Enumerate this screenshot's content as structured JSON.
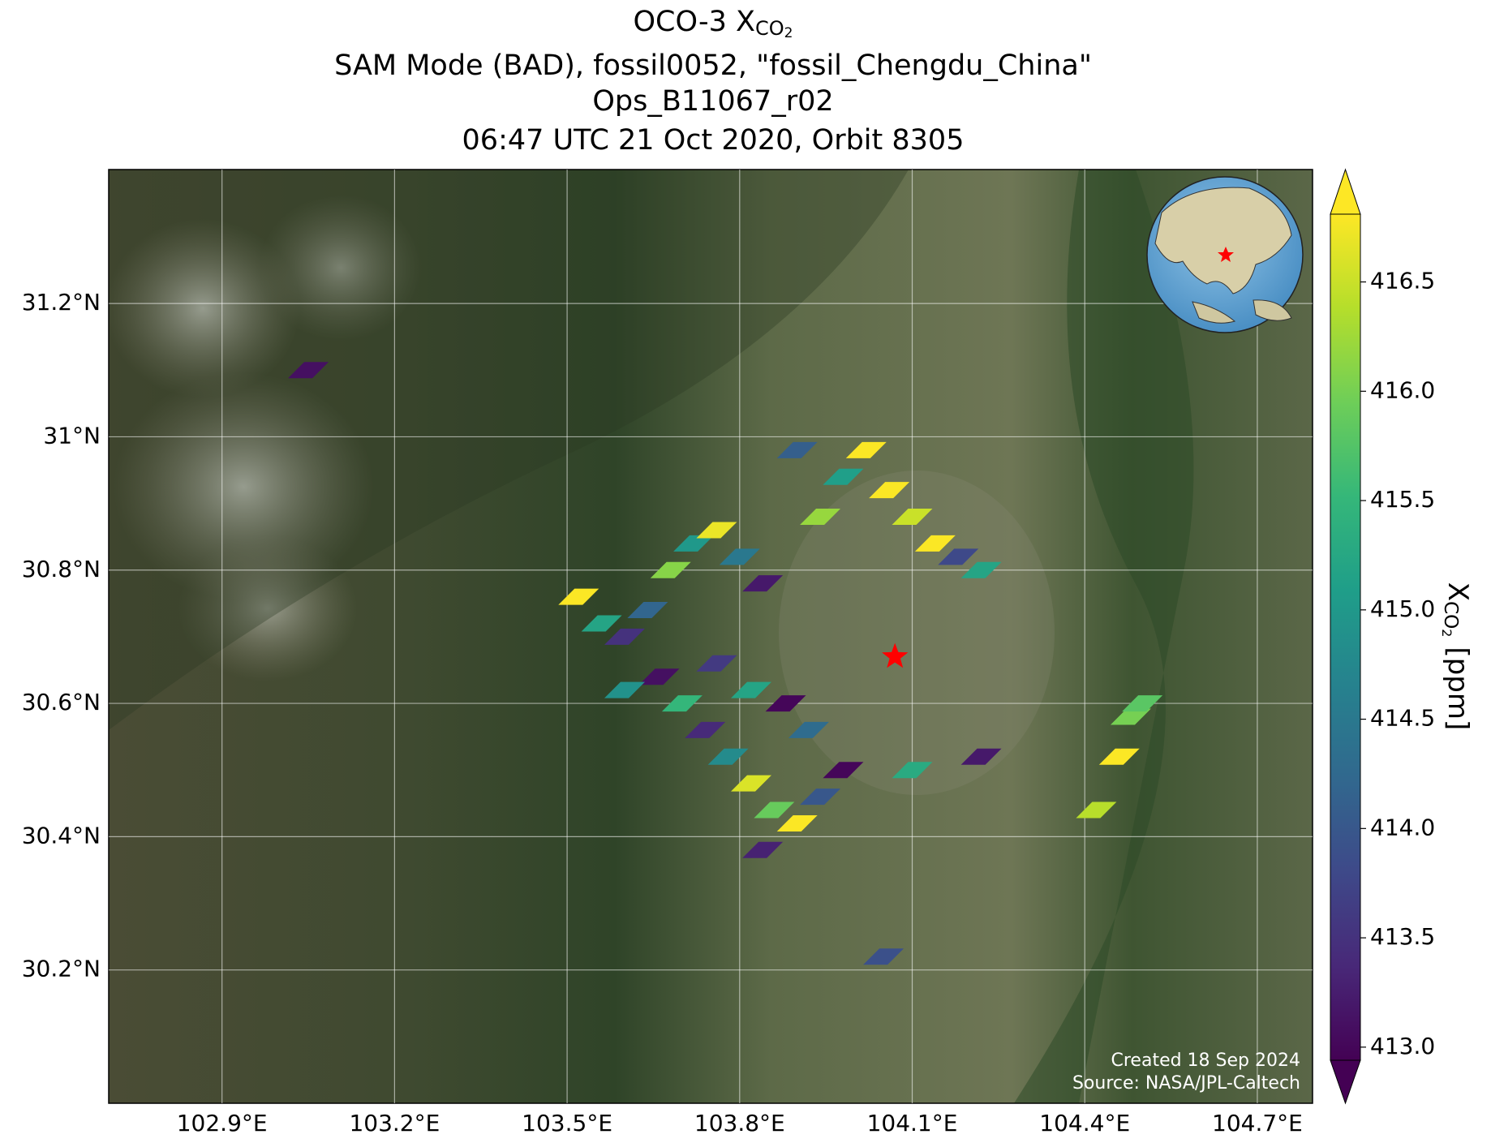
{
  "map": {
    "type": "map",
    "title": {
      "line1_main": "OCO-3 X",
      "line1_sub": "CO",
      "line1_subsub": "2",
      "line2": "SAM Mode (BAD), fossil0052, \"fossil_Chengdu_China\"",
      "line3": "Ops_B11067_r02",
      "line4": "06:47 UTC 21 Oct 2020, Orbit 8305"
    },
    "xlim": [
      102.703,
      104.796
    ],
    "ylim": [
      30.0,
      31.401
    ],
    "xticks": [
      {
        "value": 102.9,
        "label": "102.9°E"
      },
      {
        "value": 103.2,
        "label": "103.2°E"
      },
      {
        "value": 103.5,
        "label": "103.5°E"
      },
      {
        "value": 103.8,
        "label": "103.8°E"
      },
      {
        "value": 104.1,
        "label": "104.1°E"
      },
      {
        "value": 104.4,
        "label": "104.4°E"
      },
      {
        "value": 104.7,
        "label": "104.7°E"
      }
    ],
    "yticks": [
      {
        "value": 30.2,
        "label": "30.2°N"
      },
      {
        "value": 30.4,
        "label": "30.4°N"
      },
      {
        "value": 30.6,
        "label": "30.6°N"
      },
      {
        "value": 30.8,
        "label": "30.8°N"
      },
      {
        "value": 31,
        "label": "31°N"
      },
      {
        "value": 31.2,
        "label": "31.2°N"
      }
    ],
    "grid": true,
    "target": {
      "lon": 104.07,
      "lat": 30.67,
      "color": "#ff0000"
    },
    "soundings": {
      "lon": [
        103.52,
        103.56,
        103.6,
        103.64,
        103.68,
        103.72,
        103.76,
        103.8,
        103.84,
        103.66,
        103.7,
        103.74,
        103.78,
        103.82,
        103.86,
        103.9,
        103.94,
        103.98,
        103.84,
        103.76,
        103.82,
        103.88,
        103.92,
        103.6,
        103.94,
        103.98,
        104.02,
        104.06,
        104.1,
        104.14,
        104.18,
        104.22,
        103.9,
        104.42,
        104.46,
        104.48,
        104.5,
        104.1,
        104.22,
        103.05,
        104.05
      ],
      "lat": [
        30.76,
        30.72,
        30.7,
        30.74,
        30.8,
        30.84,
        30.86,
        30.82,
        30.78,
        30.64,
        30.6,
        30.56,
        30.52,
        30.48,
        30.44,
        30.42,
        30.46,
        30.5,
        30.38,
        30.66,
        30.62,
        30.6,
        30.56,
        30.62,
        30.88,
        30.94,
        30.98,
        30.92,
        30.88,
        30.84,
        30.82,
        30.8,
        30.98,
        30.44,
        30.52,
        30.58,
        30.6,
        30.5,
        30.52,
        31.1,
        30.22
      ],
      "values": [
        416.8,
        415.2,
        413.5,
        414.2,
        416.1,
        415.0,
        416.7,
        414.5,
        413.2,
        413.1,
        415.5,
        413.4,
        414.8,
        416.6,
        415.9,
        416.8,
        414.0,
        413.0,
        413.3,
        413.6,
        415.2,
        413.0,
        414.3,
        414.9,
        416.2,
        415.1,
        416.8,
        416.8,
        416.5,
        416.8,
        413.8,
        415.2,
        414.1,
        416.4,
        416.8,
        416.0,
        415.8,
        415.3,
        413.2,
        413.1,
        413.9
      ]
    },
    "colorbar": {
      "colormap": "viridis",
      "clim": [
        412.94,
        416.81
      ],
      "ticks": [
        {
          "value": 413,
          "label": "413.0"
        },
        {
          "value": 413.5,
          "label": "413.5"
        },
        {
          "value": 414,
          "label": "414.0"
        },
        {
          "value": 414.5,
          "label": "414.5"
        },
        {
          "value": 415,
          "label": "415.0"
        },
        {
          "value": 415.5,
          "label": "415.5"
        },
        {
          "value": 416,
          "label": "416.0"
        },
        {
          "value": 416.5,
          "label": "416.5"
        }
      ],
      "label_main": "X",
      "label_sub": "CO",
      "label_subsub": "2",
      "label_unit": "[ppm]"
    },
    "credits": [
      "Created 18 Sep 2024",
      "Source: NASA/JPL-Caltech"
    ]
  }
}
